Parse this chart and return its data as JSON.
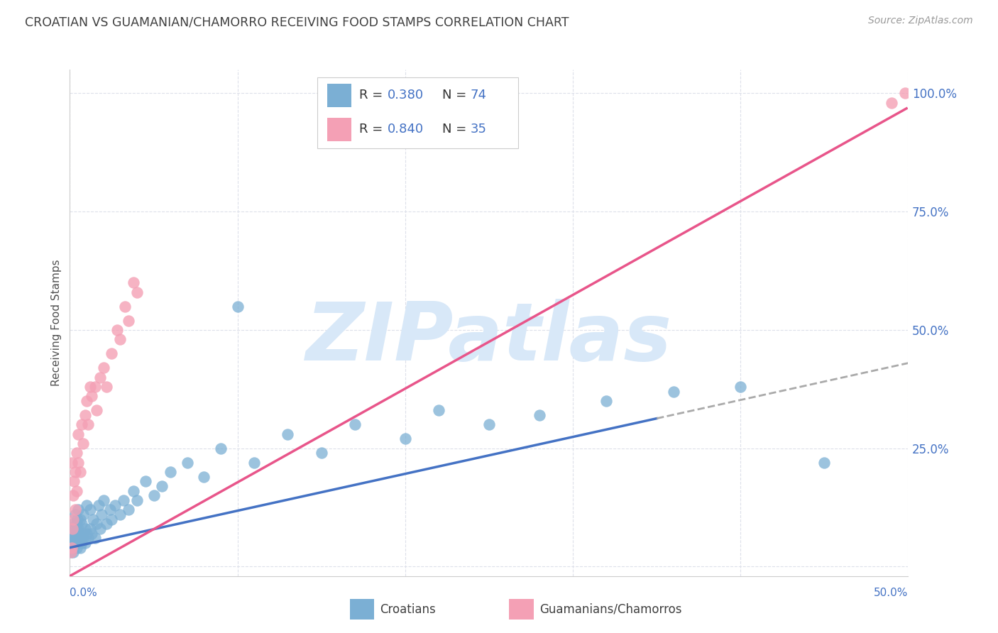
{
  "title": "CROATIAN VS GUAMANIAN/CHAMORRO RECEIVING FOOD STAMPS CORRELATION CHART",
  "source": "Source: ZipAtlas.com",
  "ylabel": "Receiving Food Stamps",
  "xlim": [
    0.0,
    0.5
  ],
  "ylim": [
    -0.02,
    1.05
  ],
  "ytick_positions": [
    0.0,
    0.25,
    0.5,
    0.75,
    1.0
  ],
  "ytick_labels": [
    "",
    "25.0%",
    "50.0%",
    "75.0%",
    "100.0%"
  ],
  "xtick_label_left": "0.0%",
  "xtick_label_right": "50.0%",
  "color_croatian": "#7bafd4",
  "color_guamanian": "#f4a0b5",
  "color_line_croatian": "#4472c4",
  "color_line_guamanian": "#e8558a",
  "color_axis_text": "#4472c4",
  "color_title": "#404040",
  "color_grid": "#dde0ea",
  "watermark": "ZIPatlas",
  "watermark_color": "#d8e8f8",
  "line_solid_end_croatian": 0.35,
  "line_slope_croatian": 0.78,
  "line_intercept_croatian": 0.04,
  "line_slope_guamanian": 1.98,
  "line_intercept_guamanian": -0.02,
  "croatian_x": [
    0.0008,
    0.001,
    0.0012,
    0.0015,
    0.0018,
    0.002,
    0.002,
    0.0022,
    0.0025,
    0.003,
    0.003,
    0.003,
    0.0032,
    0.0035,
    0.004,
    0.004,
    0.0042,
    0.0045,
    0.005,
    0.005,
    0.005,
    0.0055,
    0.006,
    0.006,
    0.0065,
    0.007,
    0.007,
    0.0075,
    0.008,
    0.008,
    0.009,
    0.009,
    0.01,
    0.01,
    0.011,
    0.012,
    0.012,
    0.013,
    0.014,
    0.015,
    0.016,
    0.017,
    0.018,
    0.019,
    0.02,
    0.022,
    0.024,
    0.025,
    0.027,
    0.03,
    0.032,
    0.035,
    0.038,
    0.04,
    0.045,
    0.05,
    0.055,
    0.06,
    0.07,
    0.08,
    0.09,
    0.1,
    0.11,
    0.13,
    0.15,
    0.17,
    0.2,
    0.22,
    0.25,
    0.28,
    0.32,
    0.36,
    0.4,
    0.45
  ],
  "croatian_y": [
    0.03,
    0.05,
    0.04,
    0.07,
    0.03,
    0.06,
    0.09,
    0.05,
    0.04,
    0.06,
    0.08,
    0.11,
    0.05,
    0.07,
    0.04,
    0.09,
    0.06,
    0.1,
    0.05,
    0.08,
    0.12,
    0.07,
    0.04,
    0.1,
    0.06,
    0.05,
    0.09,
    0.07,
    0.06,
    0.11,
    0.05,
    0.08,
    0.07,
    0.13,
    0.06,
    0.08,
    0.12,
    0.07,
    0.1,
    0.06,
    0.09,
    0.13,
    0.08,
    0.11,
    0.14,
    0.09,
    0.12,
    0.1,
    0.13,
    0.11,
    0.14,
    0.12,
    0.16,
    0.14,
    0.18,
    0.15,
    0.17,
    0.2,
    0.22,
    0.19,
    0.25,
    0.55,
    0.22,
    0.28,
    0.24,
    0.3,
    0.27,
    0.33,
    0.3,
    0.32,
    0.35,
    0.37,
    0.38,
    0.22
  ],
  "guamanian_x": [
    0.0005,
    0.001,
    0.0012,
    0.0015,
    0.002,
    0.002,
    0.0025,
    0.003,
    0.003,
    0.004,
    0.004,
    0.005,
    0.005,
    0.006,
    0.007,
    0.008,
    0.009,
    0.01,
    0.011,
    0.012,
    0.013,
    0.015,
    0.016,
    0.018,
    0.02,
    0.022,
    0.025,
    0.028,
    0.03,
    0.033,
    0.035,
    0.038,
    0.04,
    0.49,
    0.498
  ],
  "guamanian_y": [
    0.03,
    0.04,
    0.22,
    0.08,
    0.15,
    0.1,
    0.18,
    0.12,
    0.2,
    0.16,
    0.24,
    0.22,
    0.28,
    0.2,
    0.3,
    0.26,
    0.32,
    0.35,
    0.3,
    0.38,
    0.36,
    0.38,
    0.33,
    0.4,
    0.42,
    0.38,
    0.45,
    0.5,
    0.48,
    0.55,
    0.52,
    0.6,
    0.58,
    0.98,
    1.0
  ]
}
